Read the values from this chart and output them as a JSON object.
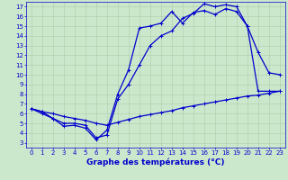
{
  "title": "",
  "xlabel": "Graphe des températures (°C)",
  "ylabel": "",
  "bg_color": "#cce8cc",
  "line_color": "#0000cc",
  "grid_color": "#aaccaa",
  "xlim": [
    -0.5,
    23.5
  ],
  "ylim": [
    2.5,
    17.5
  ],
  "xticks": [
    0,
    1,
    2,
    3,
    4,
    5,
    6,
    7,
    8,
    9,
    10,
    11,
    12,
    13,
    14,
    15,
    16,
    17,
    18,
    19,
    20,
    21,
    22,
    23
  ],
  "yticks": [
    3,
    4,
    5,
    6,
    7,
    8,
    9,
    10,
    11,
    12,
    13,
    14,
    15,
    16,
    17
  ],
  "line1_x": [
    0,
    1,
    2,
    3,
    4,
    5,
    6,
    7,
    8,
    9,
    10,
    11,
    12,
    13,
    14,
    15,
    16,
    17,
    18,
    19,
    20,
    21,
    22,
    23
  ],
  "line1_y": [
    6.5,
    6.2,
    6.0,
    5.7,
    5.5,
    5.3,
    5.0,
    4.8,
    5.1,
    5.4,
    5.7,
    5.9,
    6.1,
    6.3,
    6.6,
    6.8,
    7.0,
    7.2,
    7.4,
    7.6,
    7.8,
    7.9,
    8.1,
    8.3
  ],
  "line2_x": [
    0,
    1,
    2,
    3,
    4,
    5,
    6,
    7,
    8,
    9,
    10,
    11,
    12,
    13,
    14,
    15,
    16,
    17,
    18,
    19,
    20,
    21,
    22,
    23
  ],
  "line2_y": [
    6.5,
    6.2,
    5.5,
    5.0,
    5.0,
    4.8,
    3.5,
    3.8,
    7.5,
    9.0,
    11.0,
    13.0,
    14.0,
    14.5,
    15.8,
    16.3,
    17.3,
    17.0,
    17.2,
    17.0,
    15.0,
    8.3,
    8.3,
    8.3
  ],
  "line3_x": [
    0,
    1,
    2,
    3,
    4,
    5,
    6,
    7,
    8,
    9,
    10,
    11,
    12,
    13,
    14,
    15,
    16,
    17,
    18,
    19,
    20,
    21,
    22,
    23
  ],
  "line3_y": [
    6.5,
    6.0,
    5.5,
    4.7,
    4.8,
    4.5,
    3.3,
    4.3,
    8.0,
    10.5,
    14.8,
    15.0,
    15.3,
    16.5,
    15.3,
    16.4,
    16.6,
    16.2,
    16.8,
    16.5,
    15.0,
    12.3,
    10.2,
    10.0
  ],
  "marker": "+",
  "markersize": 3,
  "linewidth": 0.9,
  "tick_fontsize": 5,
  "label_fontsize": 6.5
}
